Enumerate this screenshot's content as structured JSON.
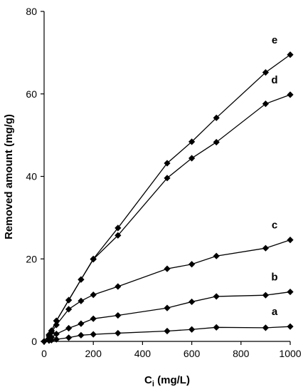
{
  "chart_data": {
    "type": "scatter",
    "title": "",
    "xlabel": "C",
    "xlabel_sub": "i",
    "xlabel_unit": " (mg/L)",
    "ylabel": "Removed amount (mg/g)",
    "xlim": [
      0,
      1000
    ],
    "ylim": [
      0,
      80
    ],
    "xticks": [
      0,
      200,
      400,
      600,
      800,
      1000
    ],
    "yticks": [
      0,
      20,
      40,
      60,
      80
    ],
    "grid": false,
    "legend": "none",
    "marker": "diamond",
    "line_color": "#000000",
    "marker_color": "#000000",
    "series": [
      {
        "name": "a",
        "x": [
          0,
          20,
          30,
          50,
          100,
          150,
          200,
          300,
          500,
          600,
          700,
          900,
          1000
        ],
        "y": [
          0,
          0.2,
          0.3,
          0.5,
          0.9,
          1.5,
          1.7,
          2.0,
          2.5,
          2.9,
          3.4,
          3.3,
          3.6
        ]
      },
      {
        "name": "b",
        "x": [
          0,
          20,
          30,
          50,
          100,
          150,
          200,
          300,
          500,
          600,
          700,
          900,
          1000
        ],
        "y": [
          0,
          0.6,
          1.0,
          1.8,
          3.2,
          4.3,
          5.5,
          6.3,
          8.1,
          9.6,
          10.9,
          11.2,
          12.0
        ]
      },
      {
        "name": "c",
        "x": [
          0,
          20,
          30,
          50,
          100,
          150,
          200,
          300,
          500,
          600,
          700,
          900,
          1000
        ],
        "y": [
          0,
          1.3,
          2.2,
          4.0,
          7.8,
          9.8,
          11.3,
          13.3,
          17.6,
          18.7,
          20.7,
          22.6,
          24.6
        ]
      },
      {
        "name": "d",
        "x": [
          0,
          20,
          30,
          50,
          100,
          150,
          200,
          300,
          500,
          600,
          700,
          900,
          1000
        ],
        "y": [
          0,
          1.6,
          2.6,
          5.0,
          10.0,
          15.0,
          19.9,
          25.7,
          39.6,
          44.4,
          48.3,
          57.6,
          59.8
        ]
      },
      {
        "name": "e",
        "x": [
          0,
          20,
          30,
          50,
          100,
          150,
          200,
          300,
          500,
          600,
          700,
          900,
          1000
        ],
        "y": [
          0,
          1.6,
          2.6,
          5.0,
          10.0,
          15.0,
          20.0,
          27.5,
          43.2,
          48.4,
          54.2,
          65.2,
          69.5
        ]
      }
    ]
  }
}
